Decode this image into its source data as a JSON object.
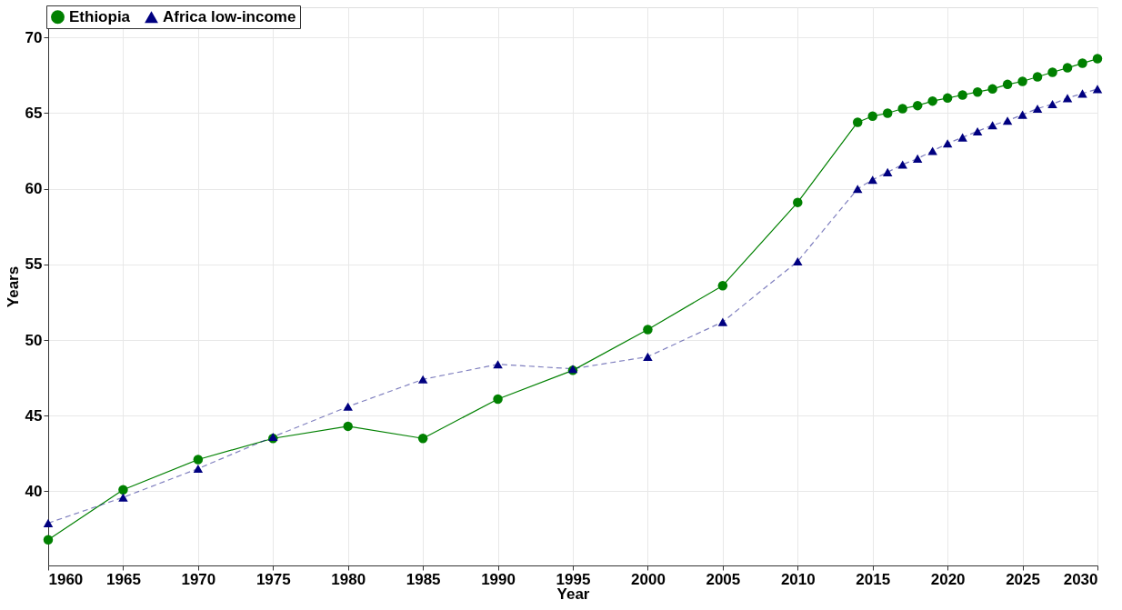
{
  "chart_data": {
    "type": "line",
    "xlabel": "Year",
    "ylabel": "Years",
    "x": [
      1960,
      1965,
      1970,
      1975,
      1980,
      1985,
      1990,
      1995,
      2000,
      2005,
      2010,
      2014,
      2015,
      2016,
      2017,
      2018,
      2019,
      2020,
      2021,
      2022,
      2023,
      2024,
      2025,
      2026,
      2027,
      2028,
      2029,
      2030
    ],
    "series": [
      {
        "name": "Ethiopia",
        "color": "#008000",
        "marker": "circle",
        "line_style": "solid",
        "values": [
          36.8,
          40.1,
          42.1,
          43.5,
          44.3,
          43.5,
          46.1,
          48.0,
          50.7,
          53.6,
          59.1,
          64.4,
          64.8,
          65.0,
          65.3,
          65.5,
          65.8,
          66.0,
          66.2,
          66.4,
          66.6,
          66.9,
          67.1,
          67.4,
          67.7,
          68.0,
          68.3,
          68.6
        ]
      },
      {
        "name": "Africa low-income",
        "color": "#000080",
        "marker": "triangle",
        "line_style": "dashed",
        "values": [
          37.9,
          39.6,
          41.5,
          43.6,
          45.6,
          47.4,
          48.4,
          48.1,
          48.9,
          51.2,
          55.2,
          60.0,
          60.6,
          61.1,
          61.6,
          62.0,
          62.5,
          63.0,
          63.4,
          63.8,
          64.2,
          64.5,
          64.9,
          65.3,
          65.6,
          66.0,
          66.3,
          66.6
        ]
      }
    ],
    "xlim": [
      1960,
      2030
    ],
    "xticks": [
      1960,
      1965,
      1970,
      1975,
      1980,
      1985,
      1990,
      1995,
      2000,
      2005,
      2010,
      2015,
      2020,
      2025,
      2030
    ],
    "ylim": [
      35.1,
      72
    ],
    "yticks": [
      40,
      45,
      50,
      55,
      60,
      65,
      70
    ],
    "grid": true,
    "legend": "top left"
  }
}
